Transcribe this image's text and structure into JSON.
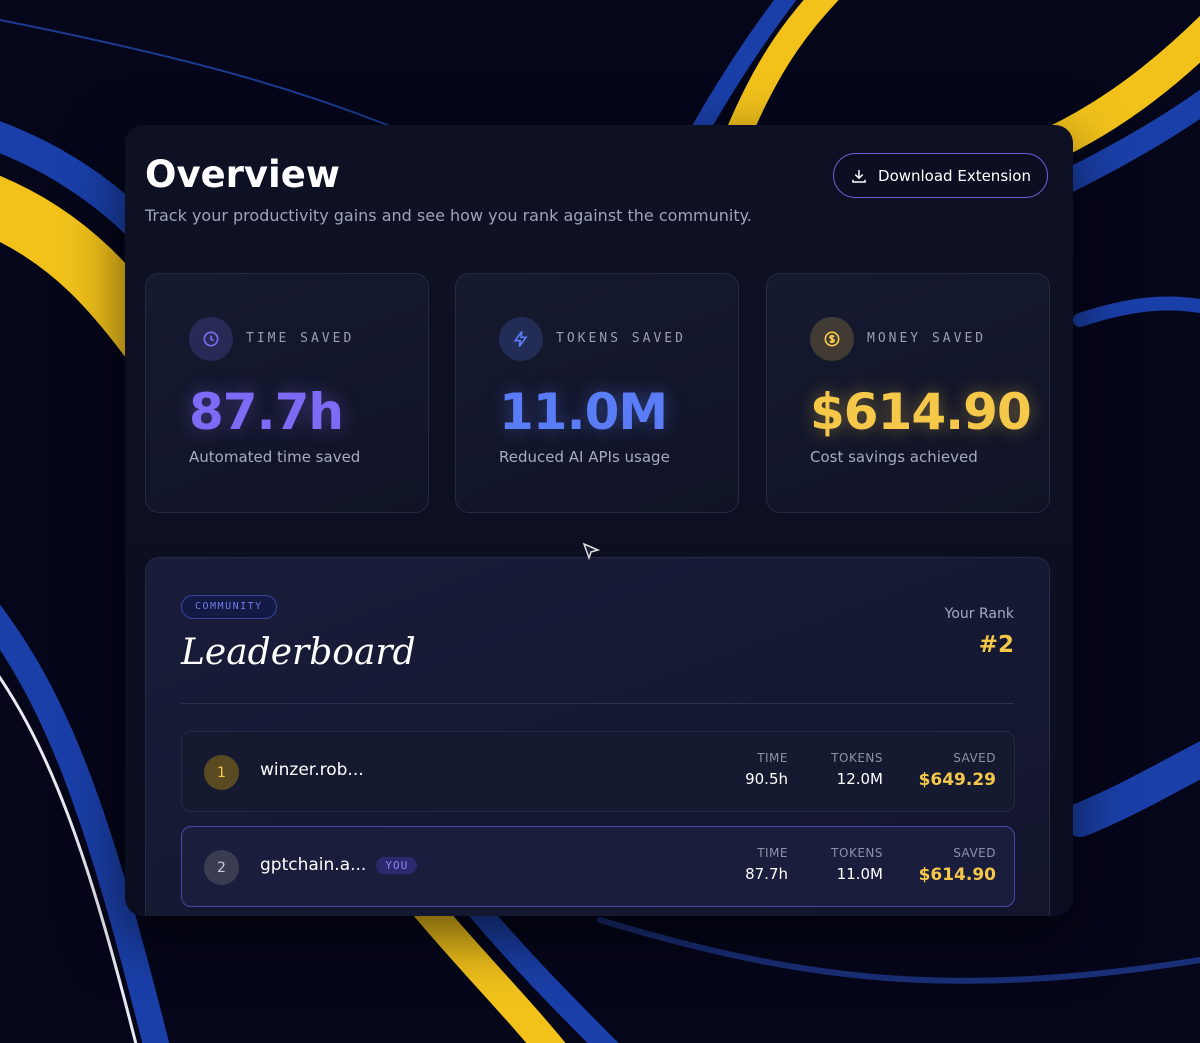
{
  "header": {
    "title": "Overview",
    "subtitle": "Track your productivity gains and see how you rank against the community.",
    "button": "Download Extension"
  },
  "stats": [
    {
      "label": "TIME SAVED",
      "value": "87.7h",
      "caption": "Automated time saved",
      "color": "#7c6cf5"
    },
    {
      "label": "TOKENS SAVED",
      "value": "11.0M",
      "caption": "Reduced AI APIs usage",
      "color": "#5b7cf7"
    },
    {
      "label": "MONEY SAVED",
      "value": "$614.90",
      "caption": "Cost savings achieved",
      "color": "#f5c84a"
    }
  ],
  "leaderboard": {
    "badge": "COMMUNITY",
    "title": "Leaderboard",
    "rank_label": "Your Rank",
    "rank": "#2",
    "columns": [
      "TIME",
      "TOKENS",
      "SAVED"
    ],
    "rows": [
      {
        "rank": 1,
        "name": "winzer.rob...",
        "time": "90.5h",
        "tokens": "12.0M",
        "saved": "$649.29"
      },
      {
        "rank": 2,
        "name": "gptchain.a...",
        "you": "YOU",
        "time": "87.7h",
        "tokens": "11.0M",
        "saved": "$614.90"
      }
    ]
  }
}
